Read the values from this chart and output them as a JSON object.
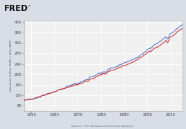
{
  "title": "FRED",
  "ylabel": "Index, Index of (IChn. 2009 $) = (IChn. 2009 $)",
  "source": "Source: U.S. Bureau of Economic Analysis",
  "xmin": 1947,
  "xmax": 2015,
  "ymin": 60,
  "ymax": 405,
  "yticks": [
    80,
    120,
    160,
    200,
    240,
    280,
    320,
    360,
    400
  ],
  "xticks": [
    1950,
    1960,
    1970,
    1980,
    1990,
    2000,
    2010
  ],
  "bg_color": "#d8dde6",
  "plot_bg_color": "#f0f0f0",
  "line1_color": "#5577cc",
  "line2_color": "#cc3333",
  "grid_color": "#ffffff",
  "title_color": "#111111",
  "axis_label_color": "#444444",
  "source_color": "#666666"
}
